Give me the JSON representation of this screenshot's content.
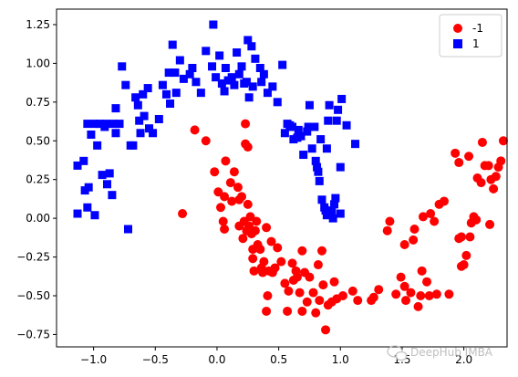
{
  "chart_data": {
    "type": "scatter",
    "xlim": [
      -1.3,
      2.35
    ],
    "ylim": [
      -0.83,
      1.35
    ],
    "xticks": [
      -1.0,
      -0.5,
      0.0,
      0.5,
      1.0,
      1.5,
      2.0
    ],
    "xtick_labels": [
      "−1.0",
      "−0.5",
      "0.0",
      "0.5",
      "1.0",
      "1.5",
      "2.0"
    ],
    "yticks": [
      -0.75,
      -0.5,
      -0.25,
      0.0,
      0.25,
      0.5,
      0.75,
      1.0,
      1.25
    ],
    "ytick_labels": [
      "−0.75",
      "−0.50",
      "−0.25",
      "0.00",
      "0.25",
      "0.50",
      "0.75",
      "1.00",
      "1.25"
    ],
    "grid": false,
    "legend_position": "top-right",
    "series": [
      {
        "name": "-1",
        "marker": "circle",
        "color": "#ff0000",
        "points": [
          [
            -0.28,
            0.03
          ],
          [
            -0.18,
            0.57
          ],
          [
            -0.09,
            0.5
          ],
          [
            -0.02,
            0.3
          ],
          [
            0.01,
            0.17
          ],
          [
            0.03,
            0.07
          ],
          [
            0.05,
            -0.02
          ],
          [
            0.06,
            -0.07
          ],
          [
            0.06,
            0.14
          ],
          [
            0.07,
            0.37
          ],
          [
            0.11,
            0.23
          ],
          [
            0.12,
            0.11
          ],
          [
            0.14,
            0.3
          ],
          [
            0.17,
            0.2
          ],
          [
            0.18,
            0.12
          ],
          [
            0.18,
            -0.05
          ],
          [
            0.2,
            0.14
          ],
          [
            0.21,
            -0.13
          ],
          [
            0.23,
            0.48
          ],
          [
            0.25,
            0.46
          ],
          [
            0.22,
            -0.02
          ],
          [
            0.23,
            0.61
          ],
          [
            0.24,
            -0.08
          ],
          [
            0.25,
            0.09
          ],
          [
            0.26,
            -0.05
          ],
          [
            0.27,
            0.01
          ],
          [
            0.28,
            -0.1
          ],
          [
            0.29,
            -0.2
          ],
          [
            0.29,
            -0.26
          ],
          [
            0.3,
            -0.34
          ],
          [
            0.31,
            -0.08
          ],
          [
            0.32,
            -0.02
          ],
          [
            0.33,
            -0.17
          ],
          [
            0.35,
            -0.2
          ],
          [
            0.36,
            -0.32
          ],
          [
            0.37,
            -0.35
          ],
          [
            0.38,
            -0.28
          ],
          [
            0.4,
            -0.06
          ],
          [
            0.4,
            -0.6
          ],
          [
            0.41,
            -0.5
          ],
          [
            0.42,
            -0.34
          ],
          [
            0.44,
            -0.15
          ],
          [
            0.45,
            -0.35
          ],
          [
            0.47,
            -0.32
          ],
          [
            0.49,
            -0.19
          ],
          [
            0.52,
            -0.28
          ],
          [
            0.55,
            -0.42
          ],
          [
            0.57,
            -0.6
          ],
          [
            0.58,
            -0.47
          ],
          [
            0.61,
            -0.29
          ],
          [
            0.62,
            -0.4
          ],
          [
            0.64,
            -0.34
          ],
          [
            0.65,
            -0.38
          ],
          [
            0.67,
            -0.48
          ],
          [
            0.69,
            -0.21
          ],
          [
            0.69,
            -0.6
          ],
          [
            0.71,
            -0.35
          ],
          [
            0.73,
            -0.54
          ],
          [
            0.75,
            -0.38
          ],
          [
            0.78,
            -0.48
          ],
          [
            0.8,
            -0.61
          ],
          [
            0.82,
            -0.3
          ],
          [
            0.83,
            -0.53
          ],
          [
            0.85,
            -0.21
          ],
          [
            0.86,
            -0.43
          ],
          [
            0.88,
            -0.72
          ],
          [
            0.9,
            -0.56
          ],
          [
            0.93,
            -0.54
          ],
          [
            0.95,
            -0.41
          ],
          [
            0.97,
            -0.52
          ],
          [
            1.02,
            -0.5
          ],
          [
            1.1,
            -0.47
          ],
          [
            1.14,
            -0.53
          ],
          [
            1.25,
            -0.53
          ],
          [
            1.27,
            -0.51
          ],
          [
            1.31,
            -0.46
          ],
          [
            1.38,
            -0.08
          ],
          [
            1.4,
            -0.02
          ],
          [
            1.45,
            -0.49
          ],
          [
            1.49,
            -0.38
          ],
          [
            1.52,
            -0.44
          ],
          [
            1.52,
            -0.17
          ],
          [
            1.53,
            -0.53
          ],
          [
            1.57,
            -0.48
          ],
          [
            1.59,
            -0.14
          ],
          [
            1.6,
            -0.07
          ],
          [
            1.63,
            -0.57
          ],
          [
            1.65,
            -0.5
          ],
          [
            1.66,
            -0.34
          ],
          [
            1.67,
            0.01
          ],
          [
            1.7,
            -0.41
          ],
          [
            1.72,
            -0.5
          ],
          [
            1.73,
            0.03
          ],
          [
            1.76,
            -0.02
          ],
          [
            1.78,
            -0.49
          ],
          [
            1.8,
            0.09
          ],
          [
            1.84,
            0.11
          ],
          [
            1.88,
            -0.49
          ],
          [
            1.93,
            0.42
          ],
          [
            1.96,
            -0.13
          ],
          [
            1.96,
            0.36
          ],
          [
            1.98,
            -0.12
          ],
          [
            1.98,
            -0.31
          ],
          [
            2.0,
            -0.3
          ],
          [
            2.02,
            -0.24
          ],
          [
            2.04,
            0.4
          ],
          [
            2.05,
            -0.12
          ],
          [
            2.06,
            -0.03
          ],
          [
            2.08,
            0.01
          ],
          [
            2.1,
            -0.01
          ],
          [
            2.11,
            0.26
          ],
          [
            2.14,
            0.23
          ],
          [
            2.15,
            0.49
          ],
          [
            2.17,
            0.34
          ],
          [
            2.2,
            0.34
          ],
          [
            2.22,
            0.25
          ],
          [
            2.24,
            0.19
          ],
          [
            2.26,
            0.27
          ],
          [
            2.28,
            0.33
          ],
          [
            2.3,
            0.37
          ],
          [
            2.32,
            0.5
          ],
          [
            2.21,
            -0.04
          ]
        ]
      },
      {
        "name": "1",
        "marker": "square",
        "color": "#0000ff",
        "points": [
          [
            -1.13,
            0.03
          ],
          [
            -1.13,
            0.34
          ],
          [
            -1.08,
            0.37
          ],
          [
            -1.07,
            0.18
          ],
          [
            -1.05,
            0.61
          ],
          [
            -1.05,
            0.07
          ],
          [
            -1.04,
            0.2
          ],
          [
            -1.02,
            0.54
          ],
          [
            -0.99,
            0.61
          ],
          [
            -0.99,
            0.02
          ],
          [
            -0.97,
            0.47
          ],
          [
            -0.95,
            0.61
          ],
          [
            -0.93,
            0.28
          ],
          [
            -0.91,
            0.59
          ],
          [
            -0.9,
            0.61
          ],
          [
            -0.89,
            0.22
          ],
          [
            -0.87,
            0.29
          ],
          [
            -0.85,
            0.15
          ],
          [
            -0.84,
            0.61
          ],
          [
            -0.82,
            0.55
          ],
          [
            -0.82,
            0.71
          ],
          [
            -0.79,
            0.61
          ],
          [
            -0.77,
            0.98
          ],
          [
            -0.74,
            0.86
          ],
          [
            -0.72,
            -0.07
          ],
          [
            -0.7,
            0.47
          ],
          [
            -0.68,
            0.47
          ],
          [
            -0.66,
            0.78
          ],
          [
            -0.64,
            0.73
          ],
          [
            -0.63,
            0.63
          ],
          [
            -0.62,
            0.55
          ],
          [
            -0.6,
            0.8
          ],
          [
            -0.59,
            0.66
          ],
          [
            -0.56,
            0.84
          ],
          [
            -0.55,
            0.58
          ],
          [
            -0.52,
            0.55
          ],
          [
            -0.47,
            0.64
          ],
          [
            -0.44,
            0.86
          ],
          [
            -0.41,
            0.8
          ],
          [
            -0.39,
            0.94
          ],
          [
            -0.38,
            0.74
          ],
          [
            -0.36,
            1.12
          ],
          [
            -0.34,
            0.94
          ],
          [
            -0.33,
            0.81
          ],
          [
            -0.3,
            1.02
          ],
          [
            -0.27,
            0.9
          ],
          [
            -0.22,
            0.93
          ],
          [
            -0.2,
            0.97
          ],
          [
            -0.17,
            0.88
          ],
          [
            -0.13,
            0.81
          ],
          [
            -0.09,
            1.08
          ],
          [
            -0.04,
            0.98
          ],
          [
            -0.03,
            1.25
          ],
          [
            -0.01,
            0.91
          ],
          [
            0.02,
            1.05
          ],
          [
            0.04,
            0.87
          ],
          [
            0.06,
            0.82
          ],
          [
            0.07,
            0.97
          ],
          [
            0.09,
            0.89
          ],
          [
            0.12,
            0.91
          ],
          [
            0.14,
            0.86
          ],
          [
            0.16,
            1.07
          ],
          [
            0.18,
            0.93
          ],
          [
            0.2,
            0.98
          ],
          [
            0.22,
            0.87
          ],
          [
            0.24,
            0.88
          ],
          [
            0.25,
            1.15
          ],
          [
            0.26,
            0.78
          ],
          [
            0.28,
            1.11
          ],
          [
            0.29,
            0.85
          ],
          [
            0.31,
            1.03
          ],
          [
            0.35,
            0.97
          ],
          [
            0.36,
            0.88
          ],
          [
            0.38,
            0.93
          ],
          [
            0.41,
            0.81
          ],
          [
            0.45,
            0.85
          ],
          [
            0.49,
            0.75
          ],
          [
            0.53,
            0.99
          ],
          [
            0.55,
            0.55
          ],
          [
            0.57,
            0.61
          ],
          [
            0.59,
            0.6
          ],
          [
            0.61,
            0.59
          ],
          [
            0.62,
            0.51
          ],
          [
            0.65,
            0.52
          ],
          [
            0.66,
            0.57
          ],
          [
            0.68,
            0.53
          ],
          [
            0.7,
            0.41
          ],
          [
            0.73,
            0.56
          ],
          [
            0.74,
            0.59
          ],
          [
            0.75,
            0.73
          ],
          [
            0.77,
            0.45
          ],
          [
            0.79,
            0.59
          ],
          [
            0.8,
            0.37
          ],
          [
            0.81,
            0.33
          ],
          [
            0.82,
            0.3
          ],
          [
            0.83,
            0.24
          ],
          [
            0.84,
            0.51
          ],
          [
            0.85,
            0.12
          ],
          [
            0.87,
            0.07
          ],
          [
            0.88,
            0.05
          ],
          [
            0.89,
            0.02
          ],
          [
            0.89,
            0.45
          ],
          [
            0.9,
            0.63
          ],
          [
            0.91,
            0.73
          ],
          [
            0.93,
            0.05
          ],
          [
            0.94,
            0.0
          ],
          [
            0.95,
            0.09
          ],
          [
            0.96,
            0.13
          ],
          [
            0.97,
            0.63
          ],
          [
            0.98,
            0.7
          ],
          [
            1.0,
            0.33
          ],
          [
            1.0,
            0.03
          ],
          [
            1.01,
            0.77
          ],
          [
            1.05,
            0.6
          ],
          [
            1.12,
            0.48
          ]
        ]
      }
    ]
  },
  "watermark": {
    "text": "DeepHub IMBA",
    "icon": "chat-bubble-icon"
  }
}
